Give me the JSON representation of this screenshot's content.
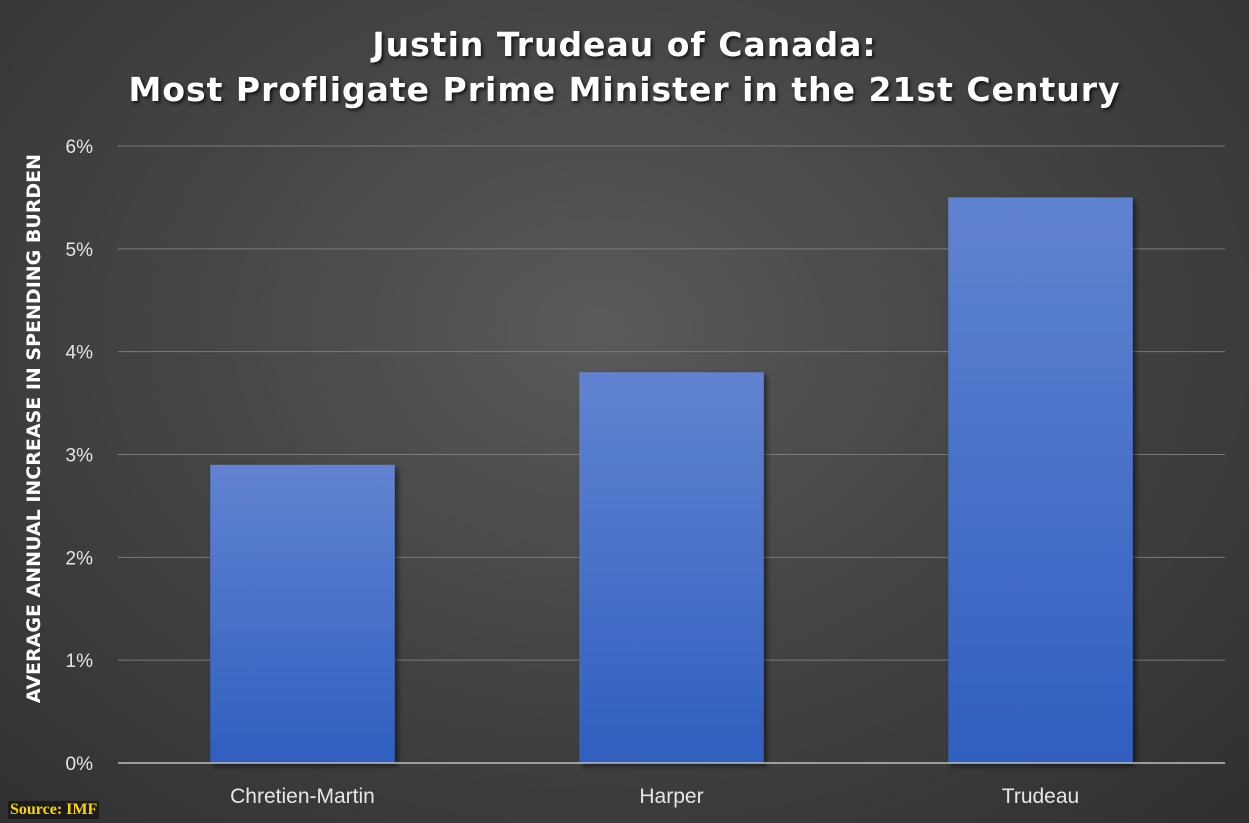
{
  "chart_data": {
    "type": "bar",
    "title": "Justin Trudeau of Canada:",
    "subtitle": "Most Profligate Prime Minister in the 21st Century",
    "ylabel": "AVERAGE ANNUAL INCREASE IN SPENDING BURDEN",
    "xlabel": "",
    "categories": [
      "Chretien-Martin",
      "Harper",
      "Trudeau"
    ],
    "values": [
      2.9,
      3.8,
      5.5
    ],
    "ylim": [
      0,
      6
    ],
    "y_ticks": [
      0,
      1,
      2,
      3,
      4,
      5,
      6
    ],
    "y_tick_labels": [
      "0%",
      "1%",
      "2%",
      "3%",
      "4%",
      "5%",
      "6%"
    ],
    "grid": true,
    "legend": "none",
    "bar_color_top": "#6183d1",
    "bar_color_bottom": "#2f5fbf",
    "source": "Source: IMF"
  }
}
